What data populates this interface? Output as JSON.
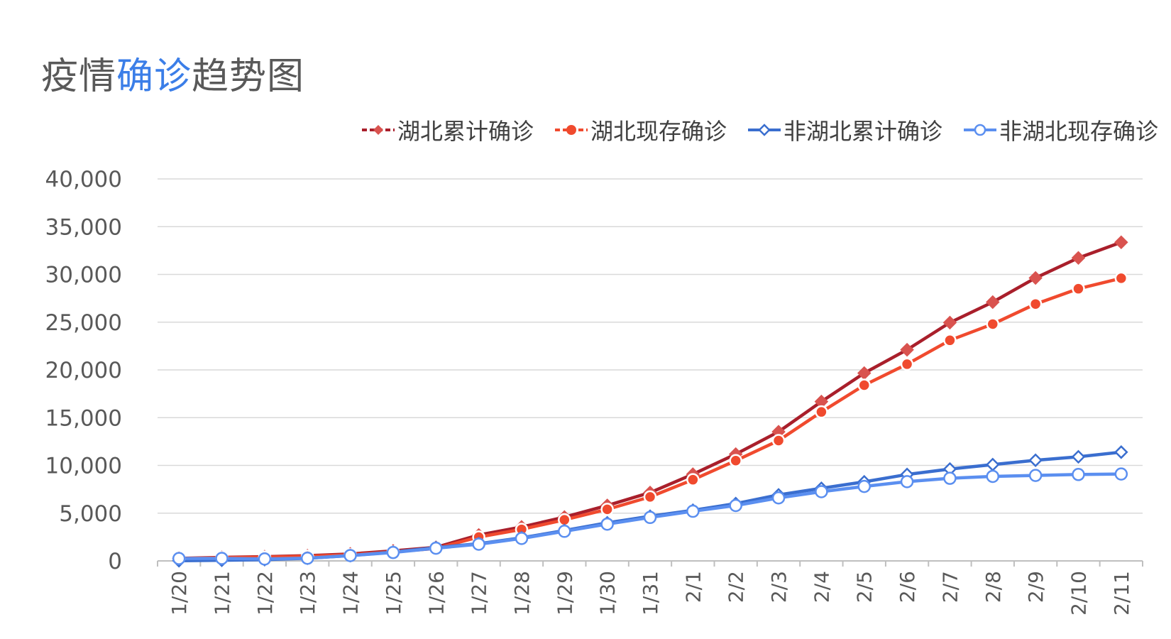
{
  "title": {
    "part1": "疫情",
    "part2": "确诊",
    "part3": "趋势图"
  },
  "colors": {
    "hubei_cumulative": "#a91f2b",
    "hubei_cumulative_marker": "#d9534f",
    "hubei_current": "#f04a2e",
    "non_hubei_cumulative": "#3a6ecf",
    "non_hubei_current": "#5b8ff0",
    "title_highlight": "#3b7ee8",
    "grid": "#d9d9d9"
  },
  "chart_data": {
    "type": "line",
    "categories": [
      "1/20",
      "1/21",
      "1/22",
      "1/23",
      "1/24",
      "1/25",
      "1/26",
      "1/27",
      "1/28",
      "1/29",
      "1/30",
      "1/31",
      "2/1",
      "2/2",
      "2/3",
      "2/4",
      "2/5",
      "2/6",
      "2/7",
      "2/8",
      "2/9",
      "2/10",
      "2/11"
    ],
    "ylim": [
      0,
      40000
    ],
    "yticks": [
      "0",
      "5,000",
      "10,000",
      "15,000",
      "20,000",
      "25,000",
      "30,000",
      "35,000",
      "40,000"
    ],
    "grid": true,
    "legend_position": "top-right",
    "series": [
      {
        "name": "湖北累计确诊",
        "marker": "diamond-filled",
        "values": [
          270,
          375,
          444,
          549,
          729,
          1052,
          1423,
          2714,
          3554,
          4586,
          5806,
          7153,
          9074,
          11177,
          13522,
          16678,
          19665,
          22112,
          24953,
          27100,
          29631,
          31728,
          33366
        ]
      },
      {
        "name": "湖北现存确诊",
        "marker": "circle-filled",
        "values": [
          240,
          330,
          390,
          480,
          640,
          950,
          1300,
          2500,
          3300,
          4300,
          5400,
          6700,
          8500,
          10500,
          12600,
          15600,
          18400,
          20600,
          23100,
          24800,
          26900,
          28500,
          29600
        ]
      },
      {
        "name": "非湖北累计确诊",
        "marker": "diamond-open",
        "values": [
          21,
          65,
          127,
          281,
          558,
          923,
          1386,
          1800,
          2420,
          3177,
          3986,
          4676,
          5302,
          6002,
          6916,
          7603,
          8283,
          9051,
          9619,
          10085,
          10540,
          10900,
          11390
        ]
      },
      {
        "name": "非湖北现存确诊",
        "marker": "circle-open",
        "values": [
          250,
          260,
          200,
          280,
          560,
          880,
          1330,
          1750,
          2350,
          3100,
          3850,
          4550,
          5200,
          5800,
          6600,
          7250,
          7800,
          8300,
          8650,
          8850,
          8950,
          9050,
          9100
        ]
      }
    ]
  }
}
